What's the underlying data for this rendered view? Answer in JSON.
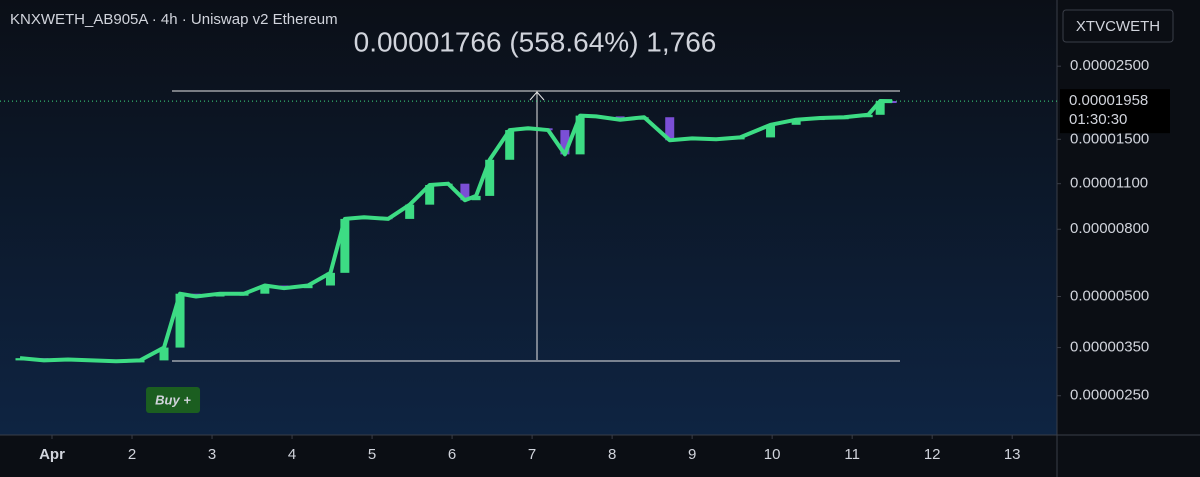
{
  "chart_data": {
    "type": "candlestick",
    "title": "KNXWETH_AB905A · 4h · Uniswap v2 Ethereum",
    "measure_label": "0.00001766 (558.64%) 1,766",
    "symbol": "XTVCWETH",
    "last_price": 1.958e-05,
    "countdown": "01:30:30",
    "signal_label": "Buy +",
    "signal_x": 2.5,
    "up_color": "#3ddc84",
    "down_color": "#7b4fd6",
    "line_color": "#3ddc84",
    "log_scale": true,
    "xlim": [
      0.35,
      13.56
    ],
    "xticks": [
      {
        "value": 1,
        "label": "Apr"
      },
      2,
      3,
      4,
      5,
      6,
      7,
      8,
      9,
      10,
      11,
      12,
      13
    ],
    "ylim": [
      1.9e-06,
      3.97e-05
    ],
    "yticks": [
      {
        "value": 2.5e-06,
        "label": "0.00000250"
      },
      {
        "value": 3.5e-06,
        "label": "0.00000350"
      },
      {
        "value": 5e-06,
        "label": "0.00000500"
      },
      {
        "value": 8e-06,
        "label": "0.00000800"
      },
      {
        "value": 1.1e-05,
        "label": "0.00001100"
      },
      {
        "value": 1.5e-05,
        "label": "0.00001500"
      },
      {
        "value": 2.5e-05,
        "label": "0.00002500"
      }
    ],
    "x": [
      0.6,
      0.9,
      1.2,
      1.5,
      1.8,
      2.1,
      2.4,
      2.6,
      2.8,
      3.1,
      3.4,
      3.66,
      3.9,
      4.2,
      4.48,
      4.66,
      4.9,
      5.2,
      5.47,
      5.72,
      5.95,
      6.16,
      6.3,
      6.47,
      6.72,
      6.95,
      7.2,
      7.41,
      7.6,
      7.8,
      8.1,
      8.4,
      8.72,
      9.0,
      9.3,
      9.6,
      9.98,
      10.3,
      10.6,
      10.9,
      11.2,
      11.35,
      11.5
    ],
    "open": [
      3.2e-06,
      3.25e-06,
      3.2e-06,
      3.22e-06,
      3.2e-06,
      3.18e-06,
      3.2e-06,
      3.5e-06,
      5.1e-06,
      5e-06,
      5.1e-06,
      5.1e-06,
      5.4e-06,
      5.3e-06,
      5.4e-06,
      5.9e-06,
      8.6e-06,
      8.7e-06,
      8.6e-06,
      9.5e-06,
      1.09e-05,
      1.1e-05,
      9.8e-06,
      1.01e-05,
      1.3e-05,
      1.6e-05,
      1.62e-05,
      1.6e-05,
      1.35e-05,
      1.77e-05,
      1.76e-05,
      1.72e-05,
      1.75e-05,
      1.49e-05,
      1.51e-05,
      1.5e-05,
      1.52e-05,
      1.66e-05,
      1.72e-05,
      1.74e-05,
      1.75e-05,
      1.78e-05,
      1.96e-05
    ],
    "close": [
      3.25e-06,
      3.2e-06,
      3.22e-06,
      3.2e-06,
      3.18e-06,
      3.2e-06,
      3.5e-06,
      5.1e-06,
      5e-06,
      5.1e-06,
      5.1e-06,
      5.4e-06,
      5.3e-06,
      5.4e-06,
      5.9e-06,
      8.6e-06,
      8.7e-06,
      8.6e-06,
      9.5e-06,
      1.09e-05,
      1.1e-05,
      9.8e-06,
      1.01e-05,
      1.3e-05,
      1.6e-05,
      1.62e-05,
      1.6e-05,
      1.35e-05,
      1.77e-05,
      1.76e-05,
      1.72e-05,
      1.75e-05,
      1.49e-05,
      1.51e-05,
      1.5e-05,
      1.52e-05,
      1.66e-05,
      1.72e-05,
      1.74e-05,
      1.75e-05,
      1.78e-05,
      1.96e-05,
      1.958e-05
    ]
  }
}
